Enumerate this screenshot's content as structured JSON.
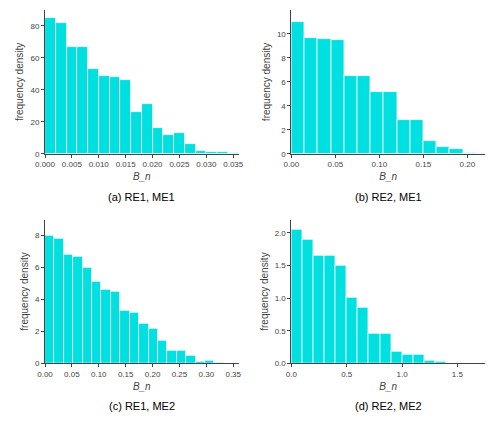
{
  "chart_data": [
    {
      "type": "histogram",
      "title": "(a) RE1, ME1",
      "xlabel": "B_n",
      "ylabel": "frequency density",
      "bins": [
        0,
        0.002,
        0.004,
        0.006,
        0.008,
        0.01,
        0.012,
        0.014,
        0.016,
        0.018,
        0.02,
        0.022,
        0.024,
        0.026,
        0.028,
        0.03,
        0.032,
        0.034,
        0.036
      ],
      "values": [
        85,
        82,
        67,
        67,
        53,
        49,
        48,
        46,
        26,
        31,
        16,
        12,
        13,
        6,
        2,
        1,
        1,
        0.5
      ],
      "color": "#00E0E0",
      "xlim": [
        0.0,
        0.036
      ],
      "ylim": [
        0,
        90
      ],
      "xticks": [
        {
          "value": 0,
          "label": "0.000"
        },
        0.005,
        {
          "value": 0.01,
          "label": "0.010"
        },
        0.015,
        {
          "value": 0.02,
          "label": "0.020"
        },
        0.025,
        {
          "value": 0.03,
          "label": "0.030"
        },
        0.035
      ],
      "yticks": [
        0,
        20,
        40,
        60,
        80
      ],
      "grid": false
    },
    {
      "type": "histogram",
      "title": "(b) RE2, ME1",
      "xlabel": "B_n",
      "ylabel": "frequency density",
      "bins": [
        0,
        0.015,
        0.03,
        0.045,
        0.06,
        0.075,
        0.09,
        0.105,
        0.12,
        0.135,
        0.15,
        0.165,
        0.18,
        0.195,
        0.21
      ],
      "values": [
        11,
        9.7,
        9.6,
        9.5,
        6.5,
        6.5,
        5.2,
        5.2,
        2.8,
        2.8,
        1.1,
        0.6,
        0.4,
        0.1
      ],
      "color": "#00E0E0",
      "xlim": [
        0.0,
        0.22
      ],
      "ylim": [
        0,
        12
      ],
      "xticks": [
        {
          "value": 0,
          "label": "0.00"
        },
        0.05,
        {
          "value": 0.1,
          "label": "0.10"
        },
        0.15,
        {
          "value": 0.2,
          "label": "0.20"
        }
      ],
      "yticks": [
        0,
        2,
        4,
        6,
        8,
        10
      ],
      "grid": false
    },
    {
      "type": "histogram",
      "title": "(c) RE1, ME2",
      "xlabel": "B_n",
      "ylabel": "frequency density",
      "bins": [
        0,
        0.0175,
        0.035,
        0.0525,
        0.07,
        0.0875,
        0.105,
        0.1225,
        0.14,
        0.1575,
        0.175,
        0.1925,
        0.21,
        0.2275,
        0.245,
        0.2625,
        0.28,
        0.2975,
        0.315,
        0.3325
      ],
      "values": [
        8.0,
        7.8,
        6.8,
        6.7,
        6.0,
        5.1,
        4.6,
        4.5,
        3.3,
        3.2,
        2.5,
        2.2,
        1.4,
        0.8,
        0.8,
        0.5,
        0.1,
        0.2,
        0.05
      ],
      "color": "#00E0E0",
      "xlim": [
        0.0,
        0.36
      ],
      "ylim": [
        0,
        9
      ],
      "xticks": [
        {
          "value": 0,
          "label": "0.00"
        },
        0.05,
        {
          "value": 0.1,
          "label": "0.10"
        },
        0.15,
        {
          "value": 0.2,
          "label": "0.20"
        },
        0.25,
        {
          "value": 0.3,
          "label": "0.30"
        },
        0.35
      ],
      "yticks": [
        0,
        2,
        4,
        6,
        8
      ],
      "grid": false
    },
    {
      "type": "histogram",
      "title": "(d) RE2, ME2",
      "xlabel": "B_n",
      "ylabel": "frequency density",
      "bins": [
        0,
        0.1,
        0.2,
        0.3,
        0.4,
        0.5,
        0.6,
        0.7,
        0.8,
        0.9,
        1.0,
        1.1,
        1.2,
        1.3,
        1.4,
        1.5
      ],
      "values": [
        2.05,
        1.9,
        1.65,
        1.65,
        1.5,
        1.0,
        0.85,
        0.45,
        0.45,
        0.18,
        0.14,
        0.14,
        0.05,
        0.03,
        0.0
      ],
      "color": "#00E0E0",
      "xlim": [
        0.0,
        1.75
      ],
      "ylim": [
        0,
        2.2
      ],
      "xticks": [
        {
          "value": 0,
          "label": "0.0"
        },
        0.5,
        {
          "value": 1,
          "label": "1.0"
        },
        1.5
      ],
      "yticks": [
        {
          "value": 0,
          "label": "0.0"
        },
        0.5,
        {
          "value": 1,
          "label": "1.0"
        },
        1.5,
        {
          "value": 2,
          "label": "2.0"
        }
      ],
      "grid": false
    }
  ]
}
